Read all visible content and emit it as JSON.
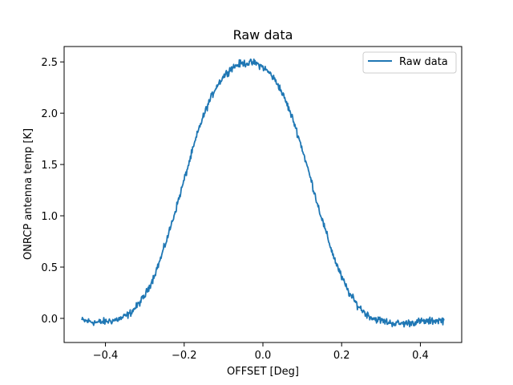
{
  "chart_data": {
    "type": "line",
    "title": "Raw data",
    "xlabel": "OFFSET [Deg]",
    "ylabel": "ONRCP antenna temp [K]",
    "xlim": [
      -0.505,
      0.505
    ],
    "ylim": [
      -0.235,
      2.65
    ],
    "xticks": [
      -0.4,
      -0.2,
      0.0,
      0.2,
      0.4
    ],
    "xtick_labels": [
      "−0.4",
      "−0.2",
      "0.0",
      "0.2",
      "0.4"
    ],
    "yticks": [
      0.0,
      0.5,
      1.0,
      1.5,
      2.0,
      2.5
    ],
    "ytick_labels": [
      "0.0",
      "0.5",
      "1.0",
      "1.5",
      "2.0",
      "2.5"
    ],
    "grid": false,
    "legend": {
      "position": "top-right",
      "entries": [
        "Raw data"
      ]
    },
    "series": [
      {
        "name": "Raw data",
        "color": "#1f77b4",
        "x": [
          -0.46,
          -0.44,
          -0.42,
          -0.4,
          -0.38,
          -0.36,
          -0.34,
          -0.32,
          -0.3,
          -0.28,
          -0.26,
          -0.24,
          -0.22,
          -0.2,
          -0.18,
          -0.16,
          -0.14,
          -0.12,
          -0.1,
          -0.08,
          -0.06,
          -0.04,
          -0.02,
          0.0,
          0.02,
          0.04,
          0.06,
          0.08,
          0.1,
          0.12,
          0.14,
          0.16,
          0.18,
          0.2,
          0.22,
          0.24,
          0.26,
          0.28,
          0.3,
          0.32,
          0.34,
          0.36,
          0.38,
          0.4,
          0.42,
          0.44,
          0.46
        ],
        "y": [
          -0.02,
          -0.03,
          -0.04,
          -0.03,
          -0.02,
          0.0,
          0.04,
          0.12,
          0.22,
          0.38,
          0.58,
          0.82,
          1.08,
          1.35,
          1.62,
          1.88,
          2.08,
          2.25,
          2.36,
          2.44,
          2.48,
          2.49,
          2.49,
          2.45,
          2.38,
          2.27,
          2.1,
          1.9,
          1.65,
          1.38,
          1.1,
          0.84,
          0.6,
          0.4,
          0.24,
          0.13,
          0.05,
          0.0,
          -0.02,
          -0.04,
          -0.05,
          -0.05,
          -0.04,
          -0.03,
          -0.03,
          -0.02,
          -0.02
        ]
      }
    ]
  }
}
